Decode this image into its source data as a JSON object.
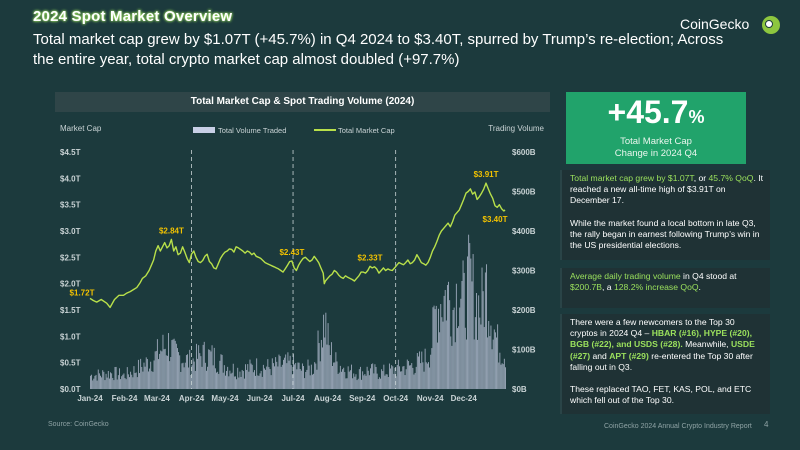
{
  "section_title": "2024 Spot Market Overview",
  "headline": "Total market cap grew by $1.07T (+45.7%) in Q4 2024 to $3.40T, spurred by Trump’s re-election; Across the entire year, total crypto market cap almost doubled (+97.7%)",
  "logo": {
    "text": "CoinGecko",
    "icon": "gecko-logo-icon"
  },
  "kpi": {
    "value": "+45.7",
    "suffix": "%",
    "label_line1": "Total Market Cap",
    "label_line2": "Change in 2024 Q4"
  },
  "panels": {
    "p1": {
      "a_hl": "Total market cap grew by $1.07T",
      "a_mid": ", or ",
      "a_pct": "45.7% QoQ",
      "a_rest": ". It reached a new all-time high of $3.91T on December 17.",
      "b": "While the market found a local bottom in late Q3, the rally began in earnest following Trump’s win in the US presidential elections."
    },
    "p2": {
      "hl": "Average daily trading volume",
      "mid": " in Q4 stood at ",
      "val": "$200.7B",
      "mid2": ", a ",
      "pct": "128.2% increase QoQ",
      "end": "."
    },
    "p3": {
      "t1": "There were a few newcomers to the Top 30 cryptos in 2024 Q4 – ",
      "c1": "HBAR (#16), HYPE (#20), BGB (#22), and USDS (#28).",
      "t2": " Meanwhile, ",
      "c2": "USDE (#27)",
      "t3": " and ",
      "c3": "APT (#29)",
      "t4": " re-entered the Top 30 after falling out in Q3.",
      "t5": "These replaced TAO, FET, KAS, POL, and ETC which fell out of the Top 30."
    }
  },
  "source": "Source: CoinGecko",
  "footer": "CoinGecko 2024 Annual Crypto Industry Report",
  "page_number": "4",
  "colors": {
    "background": "#1c3a3d",
    "accent_green": "#9be15d",
    "kpi_green": "#21a36b",
    "annotation_yellow": "#f2c200",
    "volume_bar": "#c8cfe6"
  },
  "chart_data": {
    "type": "line",
    "title": "Total Market Cap & Spot Trading Volume (2024)",
    "ylabel": "Market Cap",
    "y2label": "Trading Volume",
    "ylim": [
      0,
      4.5
    ],
    "y2lim": [
      0,
      600
    ],
    "yticks": [
      "$0.0T",
      "$0.5T",
      "$1.0T",
      "$1.5T",
      "$2.0T",
      "$2.5T",
      "$3.0T",
      "$3.5T",
      "$4.0T",
      "$4.5T"
    ],
    "y2ticks": [
      "$0B",
      "$100B",
      "$200B",
      "$300B",
      "$400B",
      "$500B",
      "$600B"
    ],
    "months": [
      "Jan-24",
      "Feb-24",
      "Mar-24",
      "Apr-24",
      "May-24",
      "Jun-24",
      "Jul-24",
      "Aug-24",
      "Sep-24",
      "Oct-24",
      "Nov-24",
      "Dec-24"
    ],
    "legend": {
      "position": "top-center",
      "volume": "Total Volume Traded",
      "mcap": "Total Market Cap"
    },
    "quarter_dividers": [
      "Apr-24",
      "Jul-24",
      "Oct-24"
    ],
    "market_cap_points": [
      [
        0,
        1.72
      ],
      [
        3,
        1.68
      ],
      [
        6,
        1.65
      ],
      [
        10,
        1.7
      ],
      [
        15,
        1.63
      ],
      [
        18,
        1.55
      ],
      [
        22,
        1.7
      ],
      [
        26,
        1.78
      ],
      [
        30,
        1.78
      ],
      [
        33,
        1.82
      ],
      [
        36,
        1.85
      ],
      [
        40,
        1.9
      ],
      [
        42,
        1.93
      ],
      [
        45,
        2.02
      ],
      [
        47,
        2.1
      ],
      [
        50,
        2.15
      ],
      [
        53,
        2.25
      ],
      [
        55,
        2.35
      ],
      [
        57,
        2.45
      ],
      [
        59,
        2.62
      ],
      [
        61,
        2.72
      ],
      [
        63,
        2.62
      ],
      [
        65,
        2.7
      ],
      [
        67,
        2.78
      ],
      [
        69,
        2.68
      ],
      [
        71,
        2.72
      ],
      [
        73,
        2.84
      ],
      [
        75,
        2.62
      ],
      [
        77,
        2.7
      ],
      [
        79,
        2.55
      ],
      [
        81,
        2.58
      ],
      [
        83,
        2.7
      ],
      [
        85,
        2.6
      ],
      [
        87,
        2.48
      ],
      [
        89,
        2.4
      ],
      [
        91,
        2.56
      ],
      [
        93,
        2.62
      ],
      [
        95,
        2.5
      ],
      [
        97,
        2.42
      ],
      [
        99,
        2.4
      ],
      [
        101,
        2.44
      ],
      [
        103,
        2.52
      ],
      [
        105,
        2.56
      ],
      [
        107,
        2.42
      ],
      [
        109,
        2.38
      ],
      [
        111,
        2.3
      ],
      [
        113,
        2.28
      ],
      [
        115,
        2.38
      ],
      [
        117,
        2.48
      ],
      [
        119,
        2.55
      ],
      [
        121,
        2.6
      ],
      [
        123,
        2.62
      ],
      [
        125,
        2.66
      ],
      [
        127,
        2.65
      ],
      [
        129,
        2.6
      ],
      [
        131,
        2.7
      ],
      [
        133,
        2.68
      ],
      [
        135,
        2.65
      ],
      [
        137,
        2.62
      ],
      [
        139,
        2.58
      ],
      [
        141,
        2.62
      ],
      [
        143,
        2.6
      ],
      [
        145,
        2.55
      ],
      [
        147,
        2.58
      ],
      [
        149,
        2.52
      ],
      [
        151,
        2.5
      ],
      [
        153,
        2.48
      ],
      [
        155,
        2.44
      ],
      [
        157,
        2.4
      ],
      [
        159,
        2.38
      ],
      [
        161,
        2.36
      ],
      [
        163,
        2.34
      ],
      [
        165,
        2.32
      ],
      [
        167,
        2.3
      ],
      [
        169,
        2.28
      ],
      [
        171,
        2.25
      ],
      [
        173,
        2.22
      ],
      [
        175,
        2.28
      ],
      [
        177,
        2.35
      ],
      [
        179,
        2.42
      ],
      [
        181,
        2.43
      ],
      [
        183,
        2.3
      ],
      [
        185,
        2.25
      ],
      [
        187,
        2.35
      ],
      [
        189,
        2.42
      ],
      [
        191,
        2.48
      ],
      [
        193,
        2.5
      ],
      [
        195,
        2.46
      ],
      [
        197,
        2.42
      ],
      [
        199,
        2.45
      ],
      [
        201,
        2.52
      ],
      [
        203,
        2.46
      ],
      [
        205,
        2.4
      ],
      [
        207,
        2.3
      ],
      [
        209,
        2.2
      ],
      [
        210,
        2.0
      ],
      [
        211,
        2.05
      ],
      [
        213,
        2.1
      ],
      [
        215,
        2.15
      ],
      [
        217,
        2.18
      ],
      [
        219,
        2.25
      ],
      [
        221,
        2.22
      ],
      [
        223,
        2.16
      ],
      [
        225,
        2.12
      ],
      [
        227,
        2.1
      ],
      [
        229,
        2.15
      ],
      [
        231,
        2.12
      ],
      [
        233,
        2.1
      ],
      [
        235,
        2.08
      ],
      [
        237,
        2.05
      ],
      [
        239,
        2.1
      ],
      [
        241,
        2.15
      ],
      [
        243,
        2.22
      ],
      [
        245,
        2.22
      ],
      [
        247,
        2.2
      ],
      [
        249,
        2.25
      ],
      [
        251,
        2.33
      ],
      [
        253,
        2.3
      ],
      [
        255,
        2.32
      ],
      [
        257,
        2.28
      ],
      [
        259,
        2.2
      ],
      [
        261,
        2.25
      ],
      [
        263,
        2.3
      ],
      [
        265,
        2.25
      ],
      [
        267,
        2.28
      ],
      [
        269,
        2.26
      ],
      [
        271,
        2.25
      ],
      [
        273,
        2.3
      ],
      [
        275,
        2.35
      ],
      [
        277,
        2.4
      ],
      [
        279,
        2.38
      ],
      [
        281,
        2.36
      ],
      [
        283,
        2.4
      ],
      [
        285,
        2.45
      ],
      [
        287,
        2.38
      ],
      [
        289,
        2.4
      ],
      [
        291,
        2.45
      ],
      [
        293,
        2.55
      ],
      [
        295,
        2.48
      ],
      [
        297,
        2.4
      ],
      [
        299,
        2.38
      ],
      [
        301,
        2.35
      ],
      [
        303,
        2.4
      ],
      [
        305,
        2.5
      ],
      [
        307,
        2.62
      ],
      [
        309,
        2.7
      ],
      [
        311,
        2.8
      ],
      [
        313,
        2.92
      ],
      [
        315,
        3.0
      ],
      [
        317,
        3.05
      ],
      [
        319,
        3.1
      ],
      [
        321,
        3.15
      ],
      [
        323,
        3.08
      ],
      [
        325,
        3.18
      ],
      [
        327,
        3.3
      ],
      [
        329,
        3.35
      ],
      [
        331,
        3.4
      ],
      [
        333,
        3.5
      ],
      [
        335,
        3.6
      ],
      [
        337,
        3.72
      ],
      [
        339,
        3.75
      ],
      [
        341,
        3.8
      ],
      [
        343,
        3.7
      ],
      [
        345,
        3.74
      ],
      [
        347,
        3.6
      ],
      [
        349,
        3.65
      ],
      [
        351,
        3.72
      ],
      [
        353,
        3.8
      ],
      [
        355,
        3.91
      ],
      [
        357,
        3.8
      ],
      [
        359,
        3.7
      ],
      [
        361,
        3.62
      ],
      [
        363,
        3.48
      ],
      [
        365,
        3.45
      ],
      [
        367,
        3.5
      ],
      [
        369,
        3.42
      ],
      [
        371,
        3.38
      ],
      [
        372,
        3.4
      ]
    ],
    "volume_envelope_B": [
      [
        0,
        50
      ],
      [
        10,
        55
      ],
      [
        20,
        60
      ],
      [
        30,
        50
      ],
      [
        40,
        70
      ],
      [
        50,
        95
      ],
      [
        58,
        120
      ],
      [
        64,
        150
      ],
      [
        70,
        170
      ],
      [
        75,
        130
      ],
      [
        80,
        120
      ],
      [
        90,
        100
      ],
      [
        100,
        130
      ],
      [
        110,
        120
      ],
      [
        120,
        90
      ],
      [
        130,
        70
      ],
      [
        140,
        75
      ],
      [
        150,
        85
      ],
      [
        160,
        80
      ],
      [
        170,
        90
      ],
      [
        180,
        95
      ],
      [
        190,
        70
      ],
      [
        200,
        80
      ],
      [
        210,
        260
      ],
      [
        214,
        150
      ],
      [
        220,
        100
      ],
      [
        230,
        70
      ],
      [
        240,
        60
      ],
      [
        250,
        70
      ],
      [
        260,
        60
      ],
      [
        270,
        70
      ],
      [
        280,
        80
      ],
      [
        290,
        90
      ],
      [
        300,
        110
      ],
      [
        305,
        150
      ],
      [
        310,
        300
      ],
      [
        315,
        330
      ],
      [
        320,
        360
      ],
      [
        325,
        300
      ],
      [
        330,
        390
      ],
      [
        335,
        320
      ],
      [
        340,
        410
      ],
      [
        345,
        330
      ],
      [
        350,
        300
      ],
      [
        355,
        390
      ],
      [
        360,
        260
      ],
      [
        365,
        170
      ],
      [
        372,
        130
      ]
    ],
    "annotations": [
      {
        "label": "$1.72T",
        "day": 0,
        "value": 1.72
      },
      {
        "label": "$2.84T",
        "day": 73,
        "value": 2.84
      },
      {
        "label": "$2.43T",
        "day": 181,
        "value": 2.43
      },
      {
        "label": "$2.33T",
        "day": 251,
        "value": 2.33
      },
      {
        "label": "$3.91T",
        "day": 355,
        "value": 3.91
      },
      {
        "label": "$3.40T",
        "day": 372,
        "value": 3.4
      }
    ]
  }
}
